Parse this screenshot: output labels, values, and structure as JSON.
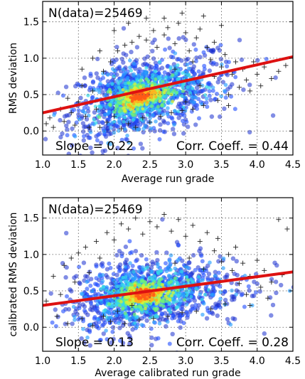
{
  "chart_data": [
    {
      "type": "scatter",
      "annotation_ndata": "N(data)=25469",
      "annotation_slope": "Slope = 0.22",
      "annotation_corr": "Corr. Coeff. = 0.44",
      "xlabel": "Average run grade",
      "ylabel": "RMS deviation",
      "xlim": [
        1.0,
        4.5
      ],
      "ylim": [
        -0.33,
        1.78
      ],
      "xticks": [
        "1.0",
        "1.5",
        "2.0",
        "2.5",
        "3.0",
        "3.5",
        "4.0",
        "4.5"
      ],
      "yticks": [
        "0.0",
        "0.5",
        "1.0",
        "1.5"
      ],
      "grid": true,
      "fit_line": {
        "x": [
          1.0,
          4.5
        ],
        "y": [
          0.25,
          1.02
        ],
        "color": "#dd1111"
      },
      "density": {
        "center_x": 2.35,
        "center_y": 0.48,
        "spread_x": 0.55,
        "spread_y": 0.3,
        "tilt": 0.22
      },
      "outliers": [
        [
          1.05,
          0.1
        ],
        [
          1.1,
          0.18
        ],
        [
          1.15,
          0.05
        ],
        [
          1.25,
          0.3
        ],
        [
          1.3,
          0.13
        ],
        [
          1.35,
          0.45
        ],
        [
          1.4,
          0.25
        ],
        [
          1.45,
          0.08
        ],
        [
          1.5,
          0.4
        ],
        [
          1.55,
          0.62
        ],
        [
          1.6,
          0.2
        ],
        [
          1.65,
          0.05
        ],
        [
          1.7,
          0.55
        ],
        [
          1.75,
          0.3
        ],
        [
          1.8,
          0.05
        ],
        [
          1.85,
          0.82
        ],
        [
          1.9,
          0.12
        ],
        [
          1.95,
          0.95
        ],
        [
          2.0,
          0.2
        ],
        [
          2.05,
          1.1
        ],
        [
          2.1,
          0.03
        ],
        [
          2.15,
          1.18
        ],
        [
          2.2,
          0.1
        ],
        [
          2.25,
          1.22
        ],
        [
          2.3,
          0.05
        ],
        [
          2.35,
          1.3
        ],
        [
          2.4,
          0.18
        ],
        [
          2.45,
          1.25
        ],
        [
          2.5,
          0.12
        ],
        [
          2.55,
          1.38
        ],
        [
          2.6,
          1.15
        ],
        [
          2.65,
          0.2
        ],
        [
          2.7,
          1.32
        ],
        [
          2.75,
          1.42
        ],
        [
          2.8,
          0.25
        ],
        [
          2.85,
          1.2
        ],
        [
          2.9,
          1.48
        ],
        [
          2.95,
          0.28
        ],
        [
          3.0,
          1.35
        ],
        [
          3.05,
          1.1
        ],
        [
          3.1,
          0.3
        ],
        [
          3.15,
          1.28
        ],
        [
          3.2,
          1.4
        ],
        [
          3.25,
          0.35
        ],
        [
          3.3,
          1.15
        ],
        [
          3.35,
          0.98
        ],
        [
          3.4,
          1.22
        ],
        [
          3.45,
          0.42
        ],
        [
          3.5,
          0.88
        ],
        [
          3.55,
          1.05
        ],
        [
          3.6,
          0.5
        ],
        [
          3.65,
          0.78
        ],
        [
          3.7,
          0.95
        ],
        [
          3.75,
          0.6
        ],
        [
          3.8,
          0.85
        ],
        [
          3.85,
          0.7
        ],
        [
          3.9,
          0.55
        ],
        [
          3.95,
          0.95
        ],
        [
          4.0,
          0.78
        ],
        [
          4.05,
          0.62
        ],
        [
          4.1,
          0.88
        ],
        [
          4.2,
          0.72
        ],
        [
          4.3,
          0.82
        ],
        [
          4.4,
          0.9
        ],
        [
          3.0,
          0.4
        ],
        [
          3.2,
          0.62
        ],
        [
          3.4,
          0.75
        ],
        [
          3.6,
          0.35
        ],
        [
          2.85,
          0.85
        ],
        [
          3.1,
          0.95
        ],
        [
          1.55,
          0.85
        ],
        [
          1.7,
          1.0
        ],
        [
          1.8,
          1.1
        ],
        [
          2.0,
          1.38
        ],
        [
          2.2,
          1.48
        ],
        [
          2.45,
          1.55
        ],
        [
          2.7,
          1.55
        ],
        [
          2.95,
          1.62
        ],
        [
          3.25,
          1.58
        ],
        [
          3.5,
          1.45
        ]
      ]
    },
    {
      "type": "scatter",
      "annotation_ndata": "N(data)=25469",
      "annotation_slope": "Slope = 0.13",
      "annotation_corr": "Corr. Coeff. = 0.28",
      "xlabel": "Average calibrated run grade",
      "ylabel": "calibrated RMS deviation",
      "xlim": [
        1.0,
        4.5
      ],
      "ylim": [
        -0.33,
        1.78
      ],
      "xticks": [
        "1.0",
        "1.5",
        "2.0",
        "2.5",
        "3.0",
        "3.5",
        "4.0",
        "4.5"
      ],
      "yticks": [
        "0.0",
        "0.5",
        "1.0",
        "1.5"
      ],
      "grid": true,
      "fit_line": {
        "x": [
          1.0,
          4.5
        ],
        "y": [
          0.3,
          0.76
        ],
        "color": "#dd1111"
      },
      "density": {
        "center_x": 2.4,
        "center_y": 0.45,
        "spread_x": 0.6,
        "spread_y": 0.28,
        "tilt": 0.13
      },
      "outliers": [
        [
          1.05,
          0.36
        ],
        [
          1.15,
          0.7
        ],
        [
          1.2,
          0.15
        ],
        [
          1.3,
          0.85
        ],
        [
          1.35,
          0.05
        ],
        [
          1.4,
          0.95
        ],
        [
          1.5,
          1.02
        ],
        [
          1.55,
          0.12
        ],
        [
          1.6,
          1.1
        ],
        [
          1.7,
          0.02
        ],
        [
          1.75,
          1.18
        ],
        [
          1.8,
          0.95
        ],
        [
          1.9,
          1.3
        ],
        [
          1.95,
          0.08
        ],
        [
          2.0,
          1.2
        ],
        [
          2.1,
          1.42
        ],
        [
          2.15,
          0.05
        ],
        [
          2.2,
          1.35
        ],
        [
          2.3,
          1.5
        ],
        [
          2.35,
          0.1
        ],
        [
          2.4,
          1.28
        ],
        [
          2.5,
          1.45
        ],
        [
          2.55,
          0.12
        ],
        [
          2.6,
          1.38
        ],
        [
          2.7,
          1.55
        ],
        [
          2.75,
          0.15
        ],
        [
          2.8,
          1.32
        ],
        [
          2.9,
          1.48
        ],
        [
          2.95,
          0.2
        ],
        [
          3.0,
          1.25
        ],
        [
          3.1,
          1.4
        ],
        [
          3.15,
          0.22
        ],
        [
          3.2,
          1.18
        ],
        [
          3.3,
          1.3
        ],
        [
          3.35,
          0.25
        ],
        [
          3.4,
          1.05
        ],
        [
          3.45,
          1.22
        ],
        [
          3.5,
          0.9
        ],
        [
          3.55,
          0.32
        ],
        [
          3.6,
          1.0
        ],
        [
          3.65,
          0.78
        ],
        [
          3.7,
          1.1
        ],
        [
          3.75,
          0.6
        ],
        [
          3.8,
          0.88
        ],
        [
          3.85,
          0.45
        ],
        [
          3.9,
          0.7
        ],
        [
          4.0,
          0.92
        ],
        [
          4.05,
          0.55
        ],
        [
          4.1,
          0.78
        ],
        [
          4.2,
          0.62
        ],
        [
          4.3,
          1.48
        ],
        [
          4.42,
          1.35
        ],
        [
          4.35,
          0.72
        ],
        [
          3.05,
          0.95
        ],
        [
          3.25,
          0.8
        ],
        [
          3.48,
          0.62
        ],
        [
          2.85,
          0.88
        ],
        [
          1.25,
          0.45
        ],
        [
          1.45,
          0.62
        ],
        [
          1.65,
          0.75
        ],
        [
          1.85,
          0.15
        ],
        [
          2.05,
          0.22
        ],
        [
          2.25,
          0.3
        ],
        [
          3.9,
          0.3
        ],
        [
          4.15,
          0.4
        ]
      ]
    }
  ]
}
